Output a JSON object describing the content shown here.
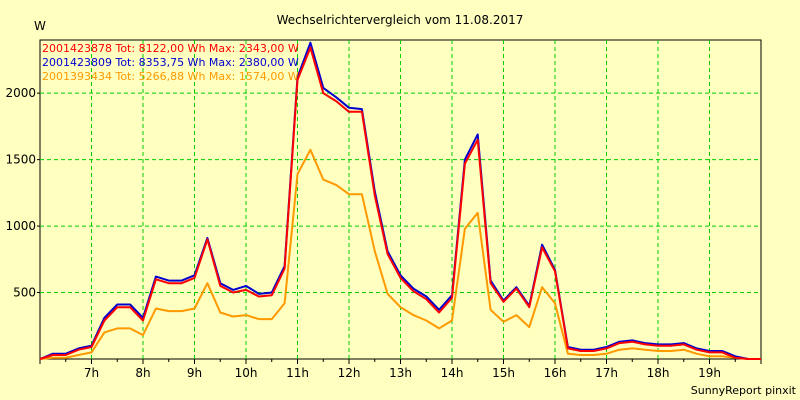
{
  "chart_data": {
    "type": "line",
    "title": "Wechselrichtervergleich vom 11.08.2017",
    "ylabel": "W",
    "footer": "SunnyReport pinxit",
    "xlim": [
      6.0,
      20.0
    ],
    "ylim": [
      0,
      2400
    ],
    "yticks": [
      500,
      1000,
      1500,
      2000
    ],
    "yticklabels": [
      "500",
      "1000",
      "1500",
      "2000"
    ],
    "xticks": [
      7,
      8,
      9,
      10,
      11,
      12,
      13,
      14,
      15,
      16,
      17,
      18,
      19
    ],
    "xticklabels": [
      "7h",
      "8h",
      "9h",
      "10h",
      "11h",
      "12h",
      "13h",
      "14h",
      "15h",
      "16h",
      "17h",
      "18h",
      "19h"
    ],
    "grid": true,
    "legend_position": "top-left",
    "x": [
      6.0,
      6.25,
      6.5,
      6.75,
      7.0,
      7.25,
      7.5,
      7.75,
      8.0,
      8.25,
      8.5,
      8.75,
      9.0,
      9.25,
      9.5,
      9.75,
      10.0,
      10.25,
      10.5,
      10.75,
      11.0,
      11.25,
      11.5,
      11.75,
      12.0,
      12.25,
      12.5,
      12.75,
      13.0,
      13.25,
      13.5,
      13.75,
      14.0,
      14.25,
      14.5,
      14.75,
      15.0,
      15.25,
      15.5,
      15.75,
      16.0,
      16.25,
      16.5,
      16.75,
      17.0,
      17.25,
      17.5,
      17.75,
      18.0,
      18.25,
      18.5,
      18.75,
      19.0,
      19.25,
      19.5,
      19.75,
      20.0
    ],
    "series": [
      {
        "name": "2001423878 Tot: 8122,00 Wh Max: 2343,00 W",
        "color": "#ff0000",
        "values": [
          0,
          30,
          30,
          70,
          90,
          290,
          390,
          390,
          290,
          600,
          570,
          570,
          610,
          900,
          550,
          500,
          520,
          470,
          480,
          680,
          2100,
          2343,
          2000,
          1940,
          1860,
          1860,
          1230,
          790,
          610,
          510,
          450,
          350,
          460,
          1470,
          1650,
          570,
          430,
          530,
          390,
          840,
          660,
          80,
          60,
          60,
          80,
          120,
          130,
          110,
          100,
          100,
          110,
          70,
          50,
          50,
          10,
          0,
          0
        ]
      },
      {
        "name": "2001423809 Tot: 8353,75 Wh Max: 2380,00 W",
        "color": "#0000d0",
        "values": [
          0,
          40,
          40,
          80,
          100,
          310,
          410,
          410,
          310,
          620,
          590,
          590,
          630,
          910,
          570,
          520,
          550,
          490,
          500,
          700,
          2120,
          2380,
          2040,
          1970,
          1890,
          1880,
          1260,
          810,
          630,
          530,
          470,
          370,
          480,
          1500,
          1690,
          590,
          440,
          540,
          400,
          860,
          670,
          90,
          70,
          70,
          90,
          130,
          140,
          120,
          110,
          110,
          120,
          80,
          60,
          60,
          20,
          0,
          0
        ]
      },
      {
        "name": "2001393434 Tot: 5266,88 Wh Max: 1574,00 W",
        "color": "#ff9900",
        "values": [
          0,
          10,
          10,
          30,
          50,
          200,
          230,
          230,
          180,
          380,
          360,
          360,
          380,
          570,
          350,
          320,
          330,
          300,
          300,
          420,
          1390,
          1574,
          1350,
          1310,
          1240,
          1240,
          810,
          490,
          390,
          330,
          290,
          230,
          290,
          980,
          1100,
          370,
          280,
          330,
          240,
          540,
          420,
          40,
          30,
          30,
          40,
          70,
          80,
          70,
          60,
          60,
          70,
          40,
          20,
          20,
          10,
          0,
          0
        ]
      }
    ]
  }
}
